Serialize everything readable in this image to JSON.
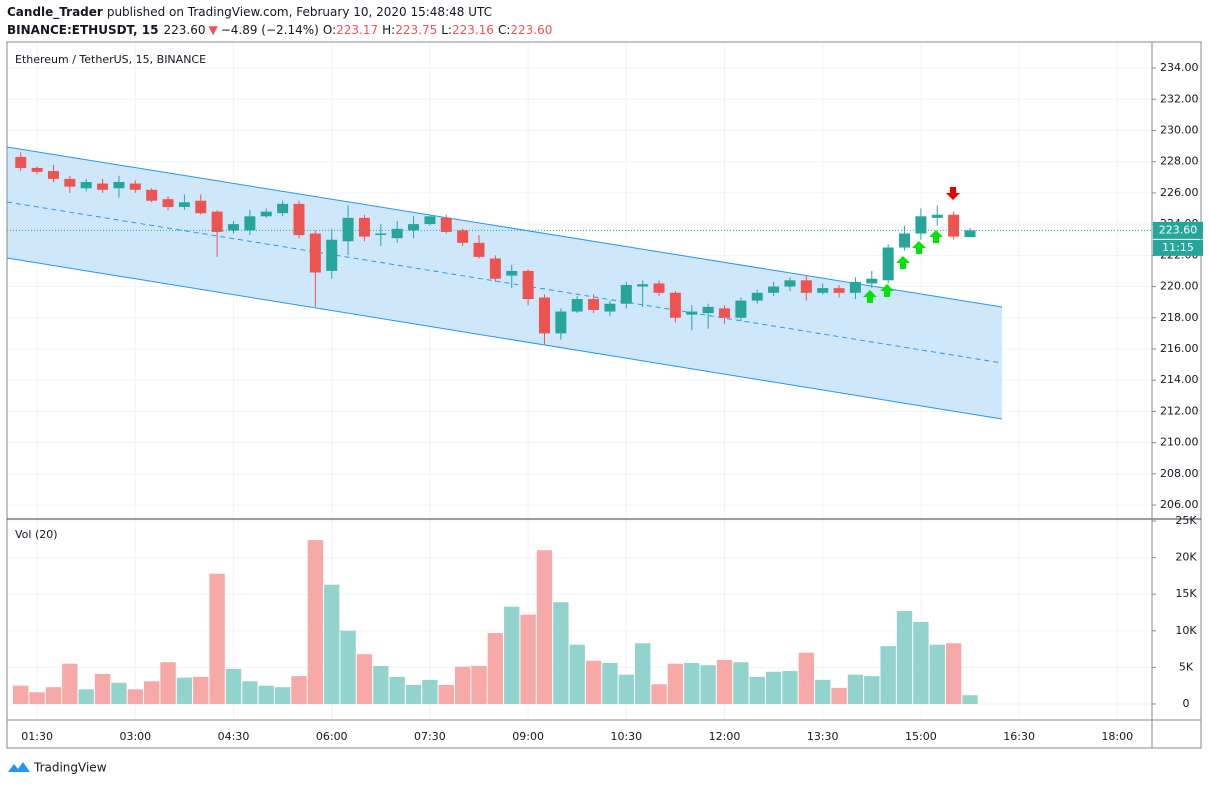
{
  "chart_data": {
    "type": "candlestick",
    "header": {
      "author": "Candle_Trader",
      "published": "published on TradingView.com, February 10, 2020 15:48:48 UTC",
      "symbol": "BINANCE:ETHUSDT, 15",
      "last": "223.60",
      "arrow": "▼",
      "change": "−4.89 (−2.14%)",
      "ohlc": [
        {
          "label": "O:",
          "value": "223.17"
        },
        {
          "label": "H:",
          "value": "223.75"
        },
        {
          "label": "L:",
          "value": "223.16"
        },
        {
          "label": "C:",
          "value": "223.60"
        }
      ]
    },
    "title": "Ethereum / TetherUS, 15, BINANCE",
    "up_color": "#26a69a",
    "down_color": "#ef5350",
    "x": [
      1.25,
      1.5,
      1.75,
      2,
      2.25,
      2.5,
      2.75,
      3,
      3.25,
      3.5,
      3.75,
      4,
      4.25,
      4.5,
      4.75,
      5,
      5.25,
      5.5,
      5.75,
      6,
      6.25,
      6.5,
      6.75,
      7,
      7.25,
      7.5,
      7.75,
      8,
      8.25,
      8.5,
      8.75,
      9,
      9.25,
      9.5,
      9.75,
      10,
      10.25,
      10.5,
      10.75,
      11,
      11.25,
      11.5,
      11.75,
      12,
      12.25,
      12.5,
      12.75,
      13,
      13.25,
      13.5,
      13.75,
      14,
      14.25,
      14.5,
      14.75,
      15,
      15.25,
      15.5,
      15.75
    ],
    "open": [
      228.3,
      227.6,
      227.4,
      226.9,
      226.3,
      226.6,
      226.3,
      226.6,
      226.2,
      225.6,
      225.1,
      225.5,
      224.8,
      223.6,
      223.6,
      224.5,
      224.7,
      225.3,
      223.4,
      221.0,
      222.9,
      224.4,
      223.3,
      223.1,
      223.6,
      224.0,
      224.4,
      223.6,
      222.8,
      221.8,
      220.7,
      221.0,
      219.3,
      217.0,
      218.4,
      219.2,
      218.4,
      218.9,
      220.0,
      220.2,
      219.6,
      218.2,
      218.3,
      218.6,
      218.0,
      219.1,
      219.6,
      220.0,
      220.4,
      219.6,
      219.9,
      219.6,
      220.2,
      220.4,
      222.5,
      223.4,
      224.4,
      224.6,
      223.17
    ],
    "high": [
      228.6,
      227.7,
      227.8,
      227.1,
      226.9,
      226.9,
      227.1,
      226.8,
      226.3,
      225.8,
      225.9,
      225.9,
      224.9,
      224.2,
      224.9,
      225.0,
      225.5,
      225.5,
      223.6,
      223.7,
      225.2,
      224.6,
      224.0,
      224.2,
      224.5,
      224.6,
      224.6,
      223.7,
      223.3,
      222.0,
      221.4,
      221.1,
      219.5,
      218.6,
      219.4,
      219.5,
      219.1,
      220.3,
      220.4,
      220.4,
      219.7,
      218.8,
      218.9,
      218.8,
      219.3,
      219.8,
      220.3,
      220.6,
      220.7,
      220.2,
      220.1,
      220.6,
      221.0,
      222.7,
      223.9,
      225.0,
      225.2,
      224.8,
      223.75
    ],
    "low": [
      227.4,
      227.2,
      226.7,
      226.0,
      226.1,
      226.0,
      225.7,
      226.0,
      225.4,
      224.9,
      224.9,
      224.6,
      221.9,
      223.4,
      223.3,
      224.4,
      224.5,
      223.1,
      218.7,
      220.5,
      222.0,
      222.9,
      222.6,
      222.8,
      223.1,
      223.9,
      223.4,
      222.6,
      221.8,
      220.3,
      219.9,
      218.8,
      216.3,
      216.6,
      218.3,
      218.3,
      218.1,
      218.6,
      218.7,
      219.4,
      217.7,
      217.2,
      217.3,
      217.6,
      217.8,
      218.9,
      219.4,
      219.7,
      219.1,
      219.5,
      219.3,
      219.2,
      219.9,
      220.2,
      222.3,
      223.0,
      223.9,
      223.0,
      223.16
    ],
    "close": [
      227.6,
      227.35,
      226.9,
      226.4,
      226.7,
      226.2,
      226.7,
      226.2,
      225.5,
      225.1,
      225.4,
      224.7,
      223.5,
      224.0,
      224.5,
      224.8,
      225.3,
      223.3,
      220.9,
      223.0,
      224.4,
      223.2,
      223.4,
      223.7,
      224.0,
      224.5,
      223.5,
      222.8,
      221.9,
      220.5,
      221.0,
      219.2,
      217.0,
      218.4,
      219.2,
      218.5,
      218.9,
      220.1,
      220.15,
      219.6,
      218.0,
      218.4,
      218.7,
      218.0,
      219.1,
      219.6,
      220.0,
      220.4,
      219.6,
      219.9,
      219.6,
      220.3,
      220.5,
      222.5,
      223.4,
      224.5,
      224.6,
      223.2,
      223.6
    ],
    "xlim": [
      1.04,
      18.53
    ],
    "xticks": [
      {
        "value": 1.5,
        "label": "01:30"
      },
      {
        "value": 3,
        "label": "03:00"
      },
      {
        "value": 4.5,
        "label": "04:30"
      },
      {
        "value": 6,
        "label": "06:00"
      },
      {
        "value": 7.5,
        "label": "07:30"
      },
      {
        "value": 9,
        "label": "09:00"
      },
      {
        "value": 10.5,
        "label": "10:30"
      },
      {
        "value": 12,
        "label": "12:00"
      },
      {
        "value": 13.5,
        "label": "13:30"
      },
      {
        "value": 15,
        "label": "15:00"
      },
      {
        "value": 16.5,
        "label": "16:30"
      },
      {
        "value": 18,
        "label": "18:00"
      }
    ],
    "ylim": [
      205.17,
      235.67
    ],
    "yticks": [
      {
        "value": 206,
        "label": "206.00"
      },
      {
        "value": 208,
        "label": "208.00"
      },
      {
        "value": 210,
        "label": "210.00"
      },
      {
        "value": 212,
        "label": "212.00"
      },
      {
        "value": 214,
        "label": "214.00"
      },
      {
        "value": 216,
        "label": "216.00"
      },
      {
        "value": 218,
        "label": "218.00"
      },
      {
        "value": 220,
        "label": "220.00"
      },
      {
        "value": 222,
        "label": "222.00"
      },
      {
        "value": 224,
        "label": "224.00"
      },
      {
        "value": 226,
        "label": "226.00"
      },
      {
        "value": 228,
        "label": "228.00"
      },
      {
        "value": 230,
        "label": "230.00"
      },
      {
        "value": 232,
        "label": "232.00"
      },
      {
        "value": 234,
        "label": "234.00"
      }
    ],
    "grid": true,
    "price_label": {
      "value": 223.6,
      "label": "223.60"
    },
    "countdown": "11:15",
    "volume": {
      "title": "Vol (20)",
      "up_color": "#93d3cd",
      "down_color": "#f6a9a7",
      "values": [
        2500,
        1600,
        2300,
        5500,
        2000,
        4100,
        2900,
        2000,
        3100,
        5700,
        3600,
        3700,
        17800,
        4800,
        3100,
        2500,
        2300,
        3800,
        22400,
        16300,
        10000,
        6800,
        5200,
        3700,
        2600,
        3300,
        2600,
        5100,
        5200,
        9700,
        13300,
        12200,
        21000,
        13900,
        8100,
        5900,
        5600,
        4000,
        8300,
        2700,
        5500,
        5600,
        5300,
        6000,
        5700,
        3700,
        4400,
        4500,
        7000,
        3300,
        2200,
        4000,
        3800,
        7900,
        12700,
        11200,
        8100,
        8300,
        1200
      ],
      "ylim": [
        -2190,
        25140
      ],
      "yticks": [
        0,
        {
          "value": 5000,
          "label": "5K"
        },
        {
          "value": 10000,
          "label": "10K"
        },
        {
          "value": 15000,
          "label": "15K"
        },
        {
          "value": 20000,
          "label": "20K"
        },
        {
          "value": 25000,
          "label": "25K"
        }
      ]
    }
  },
  "footer": "TradingView"
}
